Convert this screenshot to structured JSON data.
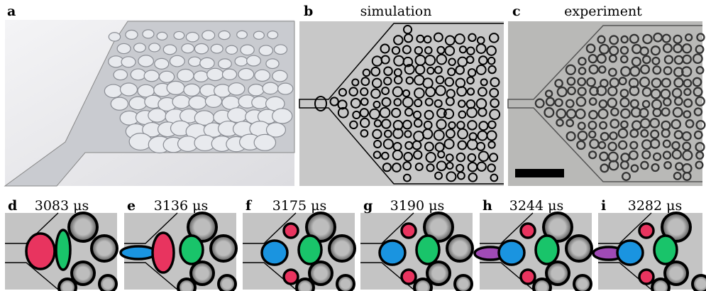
{
  "top_panels": [
    {
      "label": "a"
    },
    {
      "label": "b",
      "title": "simulation"
    },
    {
      "label": "c",
      "title": "experiment"
    }
  ],
  "bottom_panels": [
    {
      "label": "d",
      "time": "3083 μs"
    },
    {
      "label": "e",
      "time": "3136 μs"
    },
    {
      "label": "f",
      "time": "3175 μs"
    },
    {
      "label": "g",
      "time": "3190 μs"
    },
    {
      "label": "h",
      "time": "3244 μs"
    },
    {
      "label": "i",
      "time": "3282 μs"
    }
  ]
}
